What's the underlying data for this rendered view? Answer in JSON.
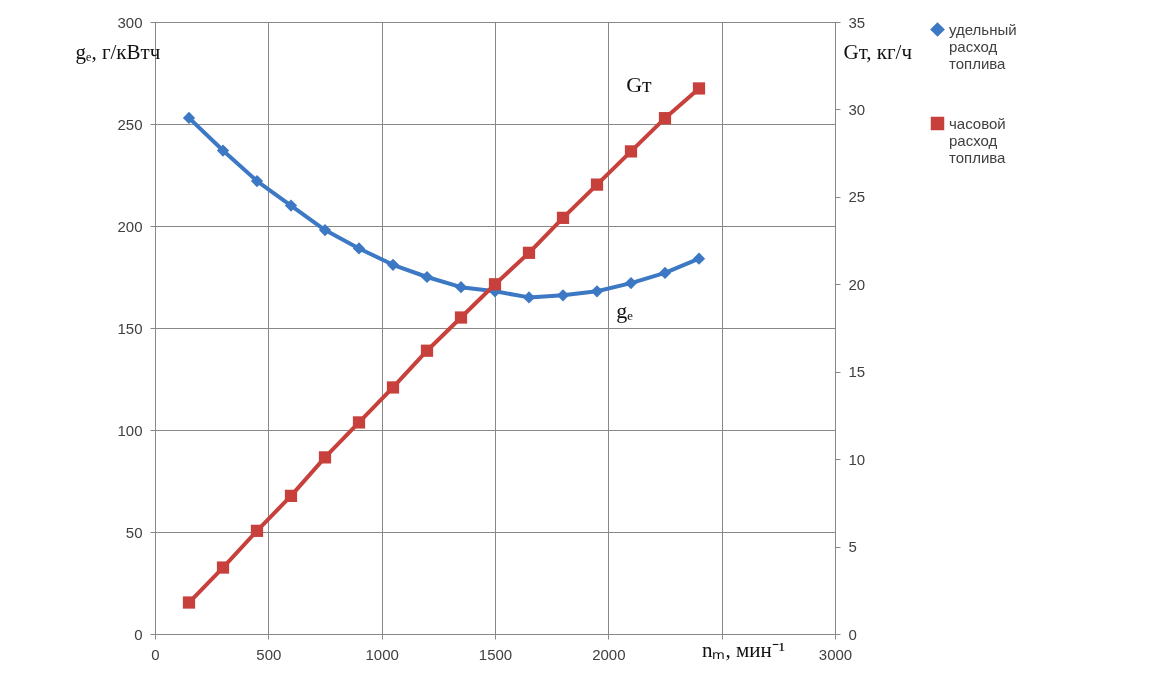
{
  "chart_data": {
    "type": "line",
    "xlabel": "nₘ, мин⁻¹",
    "ylabel": "gₑ, г/кВтч",
    "y2label": "Gт, кг/ч",
    "x": [
      150,
      300,
      450,
      600,
      750,
      900,
      1050,
      1200,
      1350,
      1500,
      1650,
      1800,
      1950,
      2100,
      2250,
      2400
    ],
    "series": [
      {
        "name": "удельный расход топлива",
        "color": "#3c78c3",
        "marker": "diamond",
        "values": [
          253,
          237,
          222,
          210,
          198,
          189,
          181,
          175,
          170,
          168,
          165,
          166,
          168,
          172,
          177,
          184
        ]
      },
      {
        "name": "часовой расход топлива",
        "color": "#c8403c",
        "marker": "square",
        "axis": "y2",
        "values": [
          1.8,
          3.8,
          5.9,
          7.9,
          10.1,
          12.1,
          14.1,
          16.2,
          18.1,
          20.0,
          21.8,
          23.8,
          25.7,
          27.6,
          29.5,
          31.2
        ]
      }
    ],
    "xlim": [
      0,
      3000
    ],
    "xticks": [
      0,
      500,
      1000,
      1500,
      2000,
      {
        "value": 2500,
        "label": null
      },
      3000
    ],
    "ylim": [
      0,
      300
    ],
    "yticks": [
      0,
      50,
      100,
      150,
      200,
      250,
      300
    ],
    "y2lim": [
      0,
      35
    ],
    "y2ticks": [
      0,
      5,
      10,
      15,
      20,
      25,
      30,
      35
    ],
    "annotations": [
      {
        "text": "Gт",
        "x": 2200,
        "y": 247
      },
      {
        "text": "gₑ",
        "x": 2000,
        "y": 169
      }
    ],
    "grid": true,
    "legend": "right",
    "line_style": "solid"
  }
}
